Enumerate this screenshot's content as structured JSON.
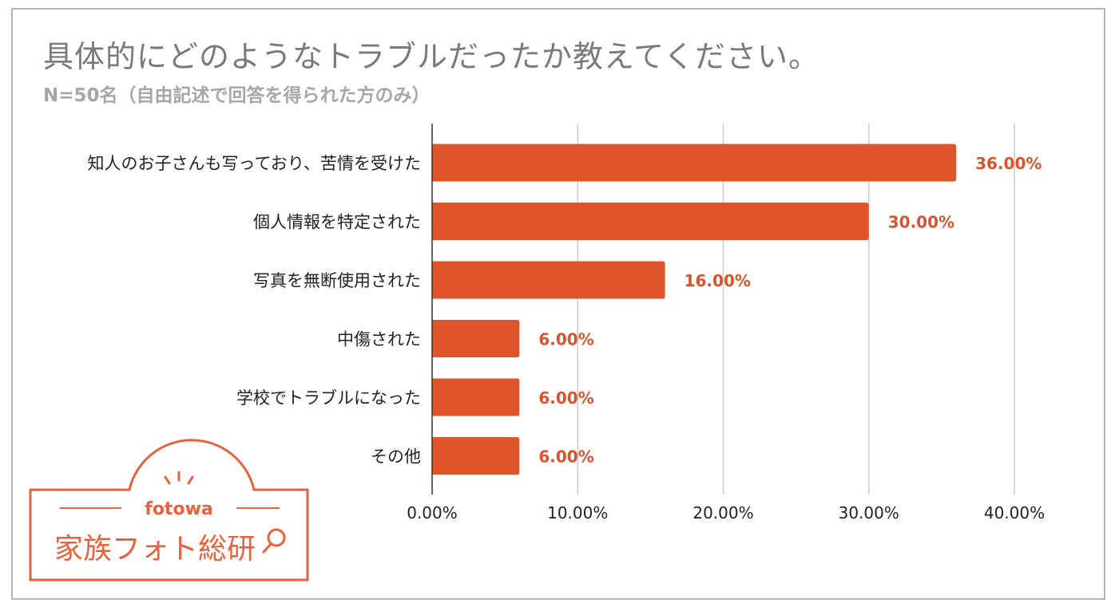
{
  "chart_data": {
    "type": "bar",
    "orientation": "horizontal",
    "title": "具体的にどのようなトラブルだったか教えてください。",
    "subtitle": "N=50名（自由記述で回答を得られた方のみ）",
    "categories": [
      "知人のお子さんも写っており、苦情を受けた",
      "個人情報を特定された",
      "写真を無断使用された",
      "中傷された",
      "学校でトラブルになった",
      "その他"
    ],
    "values": [
      36,
      30,
      16,
      6,
      6,
      6
    ],
    "value_labels": [
      "36.00%",
      "30.00%",
      "16.00%",
      "6.00%",
      "6.00%",
      "6.00%"
    ],
    "xlim": [
      0,
      40
    ],
    "ticks": [
      0,
      10,
      20,
      30,
      40
    ],
    "tick_labels": [
      "0.00%",
      "10.00%",
      "20.00%",
      "30.00%",
      "40.00%"
    ],
    "grid": true,
    "colors": {
      "bar": "#de552b",
      "value_label": "#d9532c",
      "grid": "#cccccc",
      "axis": "#333333"
    }
  },
  "logo": {
    "word": "fotowa",
    "name": "家族フォト総研",
    "color": "#e8603c"
  }
}
